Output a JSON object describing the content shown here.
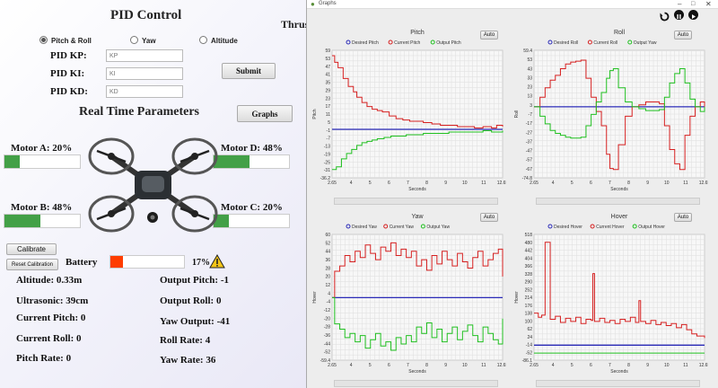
{
  "left_panel": {
    "title": "PID Control",
    "thrust_label": "Thrus",
    "modes": [
      {
        "label": "Pitch & Roll",
        "selected": true
      },
      {
        "label": "Yaw",
        "selected": false
      },
      {
        "label": "Altitude",
        "selected": false
      }
    ],
    "gains": [
      {
        "label": "PID KP:",
        "placeholder": "KP"
      },
      {
        "label": "PID KI:",
        "placeholder": "KI"
      },
      {
        "label": "PID KD:",
        "placeholder": "KD"
      }
    ],
    "submit_label": "Submit",
    "realtime_title": "Real Time Parameters",
    "graphs_label": "Graphs",
    "motors": [
      {
        "label": "Motor A: 20%",
        "level": 0.2
      },
      {
        "label": "Motor D: 48%",
        "level": 0.48
      },
      {
        "label": "Motor B: 48%",
        "level": 0.48
      },
      {
        "label": "Motor C: 20%",
        "level": 0.2
      }
    ],
    "calibrate_label": "Calibrate",
    "reset_label": "Reset Calibration",
    "battery_label": "Battery",
    "battery_percent": "17%",
    "battery_level": 0.17,
    "readouts_left": [
      "Altitude: 0.33m",
      "Ultrasonic: 39cm",
      "Current Pitch: 0",
      "Current Roll: 0",
      "Pitch Rate: 0"
    ],
    "readouts_right": [
      "Output Pitch: -1",
      "Output Roll: 0",
      "Yaw Output: -41",
      "Roll Rate: 4",
      "Yaw Rate: 36"
    ]
  },
  "graphs_window": {
    "title": "Graphs",
    "auto_label": "Auto",
    "xlabel": "Seconds"
  },
  "colors": {
    "desired": "#2b2bb8",
    "current": "#d62020",
    "output": "#20c020",
    "motor_fill": "#43a047",
    "battery_fill": "#ff3d00"
  },
  "chart_data": [
    {
      "type": "line",
      "title": "Pitch",
      "ylabel": "Pitch",
      "xlabel": "Seconds",
      "xlim": [
        2.65,
        12.65
      ],
      "ylim": [
        -36.2,
        59
      ],
      "xticks": [
        "2.65",
        "4",
        "5",
        "6",
        "7",
        "8",
        "9",
        "10",
        "11",
        "12.65"
      ],
      "yticks": [
        "59",
        "53",
        "47",
        "41",
        "35",
        "29",
        "23",
        "17",
        "11",
        "5",
        "-1",
        "-7",
        "-13",
        "-19",
        "-25",
        "-31",
        "-36.2"
      ],
      "series": [
        {
          "name": "Desired Pitch",
          "x": [
            2.65,
            12.65
          ],
          "y": [
            0,
            0
          ]
        },
        {
          "name": "Current Pitch",
          "x": [
            2.65,
            2.8,
            3,
            3.3,
            3.6,
            3.9,
            4.1,
            4.4,
            4.7,
            5,
            5.3,
            5.6,
            6,
            6.4,
            6.8,
            7.2,
            7.6,
            8,
            8.5,
            9,
            9.5,
            10,
            10.5,
            11,
            11.5,
            12,
            12.3,
            12.65
          ],
          "y": [
            55,
            50,
            46,
            38,
            32,
            28,
            24,
            20,
            17,
            15,
            14,
            13,
            10,
            8,
            7,
            6,
            6,
            5,
            4,
            3,
            3,
            2,
            2,
            1,
            2,
            1,
            3,
            2
          ]
        },
        {
          "name": "Output Pitch",
          "x": [
            2.65,
            2.9,
            3.2,
            3.5,
            3.8,
            4.1,
            4.4,
            4.7,
            5,
            5.3,
            5.7,
            6.1,
            6.5,
            7,
            7.5,
            8,
            8.5,
            9,
            9.5,
            10,
            10.5,
            11,
            11.5,
            12,
            12.65
          ],
          "y": [
            -30,
            -28,
            -22,
            -18,
            -15,
            -12,
            -10,
            -9,
            -8,
            -7,
            -6,
            -5,
            -5,
            -4,
            -4,
            -3,
            -3,
            -3,
            -2,
            -2,
            -2,
            -2,
            -1,
            -2,
            -1
          ]
        }
      ]
    },
    {
      "type": "line",
      "title": "Roll",
      "ylabel": "Roll",
      "xlabel": "Seconds",
      "xlim": [
        2.65,
        12.65
      ],
      "ylim": [
        -74.8,
        59.4
      ],
      "xticks": [
        "2.65",
        "4",
        "5",
        "6",
        "7",
        "8",
        "9",
        "10",
        "11",
        "12.65"
      ],
      "yticks": [
        "59.4",
        "53",
        "43",
        "33",
        "23",
        "13",
        "3",
        "-7",
        "-17",
        "-27",
        "-37",
        "-47",
        "-57",
        "-67",
        "-74.8"
      ],
      "series": [
        {
          "name": "Desired Roll",
          "x": [
            2.65,
            12.65
          ],
          "y": [
            0,
            0
          ]
        },
        {
          "name": "Current Roll",
          "x": [
            2.65,
            3,
            3.3,
            3.6,
            3.9,
            4.2,
            4.5,
            4.8,
            5.1,
            5.4,
            5.7,
            6,
            6.3,
            6.6,
            6.9,
            7.1,
            7.3,
            7.6,
            8,
            8.4,
            8.8,
            9.2,
            9.6,
            10,
            10.3,
            10.6,
            10.9,
            11.2,
            11.5,
            11.8,
            12.1,
            12.4,
            12.65
          ],
          "y": [
            0,
            10,
            20,
            28,
            33,
            40,
            45,
            47,
            48,
            49,
            30,
            10,
            -5,
            -20,
            -50,
            -65,
            -66,
            -40,
            -10,
            0,
            2,
            5,
            5,
            3,
            -20,
            -45,
            -60,
            -66,
            -30,
            -10,
            0,
            5,
            0
          ]
        },
        {
          "name": "Output Yaw",
          "x": [
            2.65,
            3,
            3.3,
            3.6,
            3.9,
            4.2,
            4.5,
            4.8,
            5.1,
            5.4,
            5.7,
            6,
            6.3,
            6.6,
            6.9,
            7.1,
            7.3,
            7.6,
            8,
            8.4,
            8.8,
            9.2,
            9.6,
            10,
            10.3,
            10.6,
            10.9,
            11.2,
            11.5,
            11.8,
            12.1,
            12.4,
            12.65
          ],
          "y": [
            0,
            -10,
            -18,
            -25,
            -28,
            -30,
            -32,
            -33,
            -33,
            -32,
            -20,
            -8,
            5,
            15,
            30,
            38,
            40,
            20,
            5,
            0,
            -2,
            -4,
            -4,
            -3,
            10,
            25,
            35,
            40,
            25,
            8,
            0,
            -5,
            0
          ]
        }
      ]
    },
    {
      "type": "line",
      "title": "Yaw",
      "ylabel": "Hover",
      "xlabel": "Seconds",
      "xlim": [
        2.65,
        12.65
      ],
      "ylim": [
        -59.4,
        60
      ],
      "xticks": [
        "2.65",
        "4",
        "5",
        "6",
        "7",
        "8",
        "9",
        "10",
        "11",
        "12.65"
      ],
      "yticks": [
        "60",
        "52",
        "44",
        "36",
        "28",
        "20",
        "12",
        "4",
        "-4",
        "-12",
        "-20",
        "-28",
        "-36",
        "-44",
        "-52",
        "-59.4"
      ],
      "series": [
        {
          "name": "Desired Yaw",
          "x": [
            2.65,
            12.65
          ],
          "y": [
            0,
            0
          ]
        },
        {
          "name": "Current Yaw",
          "x": [
            2.65,
            2.8,
            3.1,
            3.4,
            3.7,
            4,
            4.3,
            4.6,
            4.9,
            5.2,
            5.5,
            5.8,
            6.1,
            6.4,
            6.7,
            7,
            7.3,
            7.6,
            7.9,
            8.2,
            8.5,
            8.8,
            9.1,
            9.4,
            9.7,
            10,
            10.3,
            10.6,
            10.9,
            11.2,
            11.5,
            11.8,
            12.1,
            12.4,
            12.65
          ],
          "y": [
            0,
            25,
            30,
            40,
            34,
            44,
            38,
            50,
            42,
            36,
            48,
            44,
            52,
            40,
            46,
            38,
            44,
            30,
            36,
            26,
            40,
            32,
            44,
            36,
            30,
            42,
            34,
            28,
            38,
            44,
            30,
            36,
            42,
            46,
            20
          ]
        },
        {
          "name": "Output Yaw",
          "x": [
            2.65,
            2.8,
            3.1,
            3.4,
            3.7,
            4,
            4.3,
            4.6,
            4.9,
            5.2,
            5.5,
            5.8,
            6.1,
            6.4,
            6.7,
            7,
            7.3,
            7.6,
            7.9,
            8.2,
            8.5,
            8.8,
            9.1,
            9.4,
            9.7,
            10,
            10.3,
            10.6,
            10.9,
            11.2,
            11.5,
            11.8,
            12.1,
            12.4,
            12.65
          ],
          "y": [
            0,
            -25,
            -30,
            -38,
            -34,
            -42,
            -36,
            -48,
            -40,
            -34,
            -46,
            -42,
            -50,
            -38,
            -44,
            -36,
            -42,
            -28,
            -34,
            -24,
            -38,
            -30,
            -42,
            -34,
            -28,
            -40,
            -32,
            -26,
            -36,
            -42,
            -28,
            -34,
            -40,
            -44,
            -20
          ]
        }
      ]
    },
    {
      "type": "line",
      "title": "Hover",
      "ylabel": "Hover",
      "xlabel": "Seconds",
      "xlim": [
        2.65,
        12.65
      ],
      "ylim": [
        -86.1,
        518
      ],
      "xticks": [
        "2.65",
        "4",
        "5",
        "6",
        "7",
        "8",
        "9",
        "10",
        "11",
        "12.65"
      ],
      "yticks": [
        "518",
        "480",
        "442",
        "404",
        "366",
        "328",
        "290",
        "252",
        "214",
        "176",
        "138",
        "100",
        "62",
        "24",
        "-14",
        "-52",
        "-86.1"
      ],
      "series": [
        {
          "name": "Desired Hover",
          "x": [
            2.65,
            12.65
          ],
          "y": [
            -14,
            -14
          ]
        },
        {
          "name": "Current Hover",
          "x": [
            2.65,
            2.9,
            3.1,
            3.3,
            3.6,
            3.9,
            4.2,
            4.5,
            4.8,
            5.1,
            5.4,
            5.7,
            6,
            6.1,
            6.2,
            6.5,
            6.8,
            7.1,
            7.4,
            7.7,
            8,
            8.3,
            8.6,
            8.8,
            8.9,
            9.2,
            9.5,
            9.8,
            10.1,
            10.4,
            10.7,
            11,
            11.3,
            11.6,
            11.9,
            12.2,
            12.65
          ],
          "y": [
            140,
            120,
            130,
            480,
            110,
            125,
            95,
            115,
            100,
            120,
            90,
            110,
            105,
            330,
            100,
            115,
            95,
            105,
            90,
            110,
            100,
            120,
            95,
            200,
            100,
            90,
            105,
            85,
            95,
            80,
            90,
            70,
            85,
            60,
            40,
            30,
            20
          ]
        },
        {
          "name": "Output Hover",
          "x": [
            2.65,
            12.65
          ],
          "y": [
            -52,
            -52
          ]
        }
      ]
    }
  ]
}
